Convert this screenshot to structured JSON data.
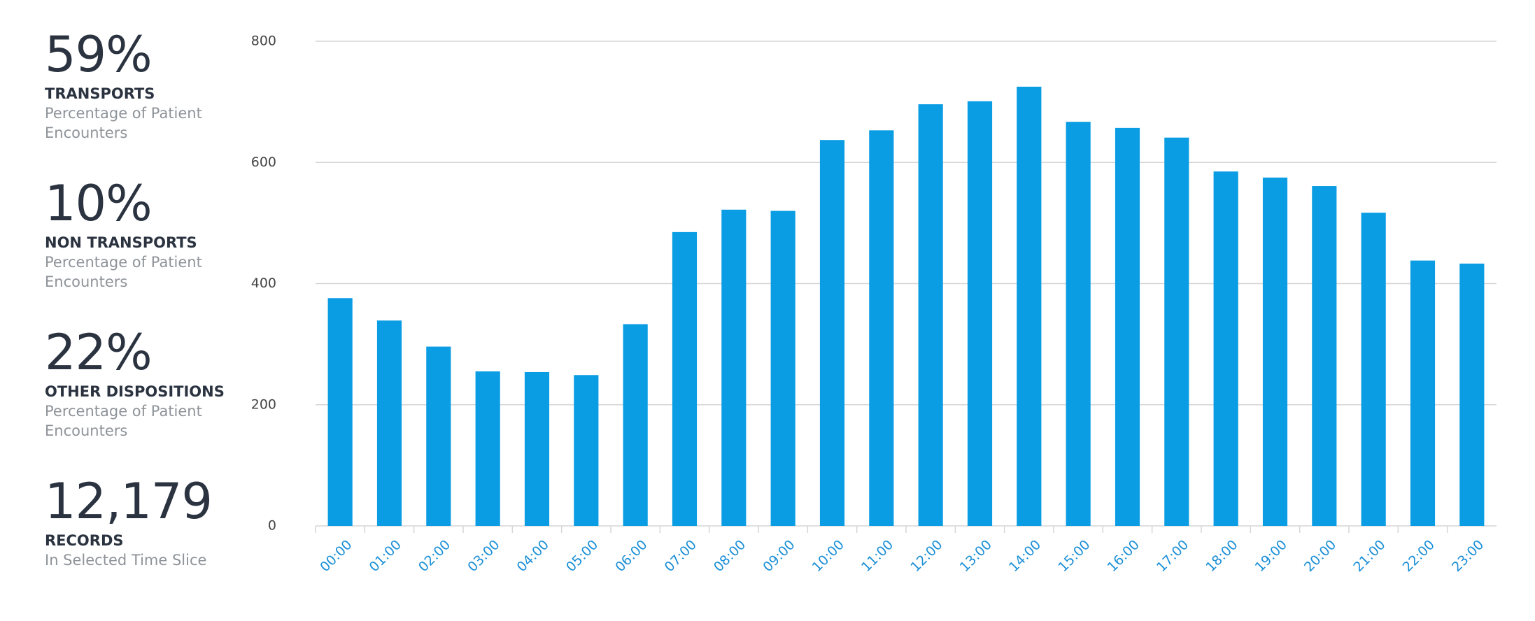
{
  "stats": [
    {
      "value": "59%",
      "label": "TRANSPORTS",
      "description": "Percentage of Patient Encounters"
    },
    {
      "value": "10%",
      "label": "NON TRANSPORTS",
      "description": "Percentage of Patient Encounters"
    },
    {
      "value": "22%",
      "label": "OTHER DISPOSITIONS",
      "description": "Percentage of Patient Encounters"
    },
    {
      "value": "12,179",
      "label": "RECORDS",
      "description": "In Selected Time Slice"
    }
  ],
  "chart_data": {
    "type": "bar",
    "categories": [
      "00:00",
      "01:00",
      "02:00",
      "03:00",
      "04:00",
      "05:00",
      "06:00",
      "07:00",
      "08:00",
      "09:00",
      "10:00",
      "11:00",
      "12:00",
      "13:00",
      "14:00",
      "15:00",
      "16:00",
      "17:00",
      "18:00",
      "19:00",
      "20:00",
      "21:00",
      "22:00",
      "23:00"
    ],
    "values": [
      376,
      339,
      296,
      255,
      254,
      249,
      333,
      485,
      522,
      520,
      637,
      653,
      696,
      701,
      725,
      667,
      657,
      641,
      585,
      575,
      561,
      517,
      438,
      433
    ],
    "color": "#0a9de3",
    "ylim": [
      0,
      800
    ],
    "yticks": [
      0,
      200,
      400,
      600,
      800
    ],
    "grid": true
  }
}
